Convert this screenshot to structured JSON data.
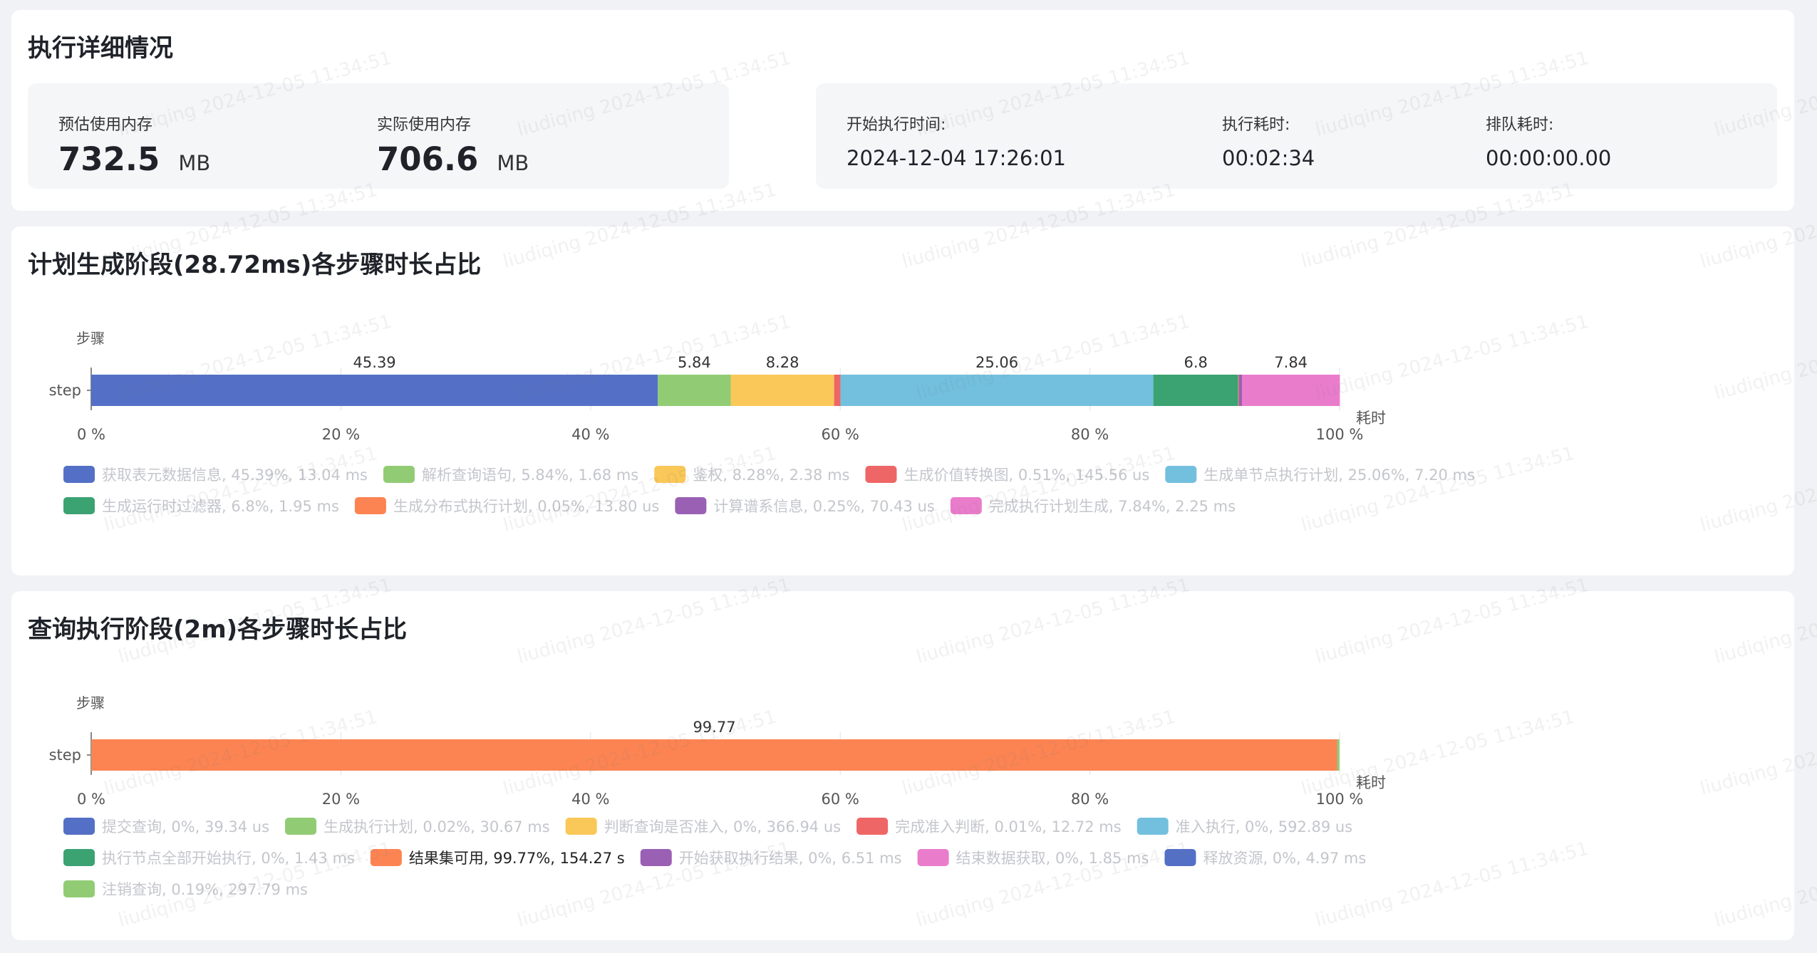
{
  "exec": {
    "title": "执行详细情况",
    "estimated_mem_label": "预估使用内存",
    "estimated_mem_value": "732.5",
    "estimated_mem_unit": "MB",
    "actual_mem_label": "实际使用内存",
    "actual_mem_value": "706.6",
    "actual_mem_unit": "MB",
    "start_label": "开始执行时间:",
    "start_value": "2024-12-04 17:26:01",
    "duration_label": "执行耗时:",
    "duration_value": "00:02:34",
    "queue_label": "排队耗时:",
    "queue_value": "00:00:00.00"
  },
  "plan": {
    "title": "计划生成阶段(28.72ms)各步骤时长占比"
  },
  "query": {
    "title": "查询执行阶段(2m)各步骤时长占比"
  },
  "watermark": {
    "text": "liudiqing 2024-12-05 11:34:51"
  },
  "chart_data": [
    {
      "type": "bar",
      "orientation": "horizontal-stacked",
      "ylabel": "步骤",
      "xlabel": "耗时",
      "categories": [
        "step"
      ],
      "xlim": [
        0,
        100
      ],
      "x_ticks": [
        "0 %",
        "20 %",
        "40 %",
        "60 %",
        "80 %",
        "100 %"
      ],
      "legend_position": "bottom",
      "series": [
        {
          "name": "获取表元数据信息, 45.39%, 13.04 ms",
          "value": 45.39,
          "color": "#5470c6",
          "label": "45.39"
        },
        {
          "name": "解析查询语句, 5.84%, 1.68 ms",
          "value": 5.84,
          "color": "#91cc75",
          "label": "5.84"
        },
        {
          "name": "鉴权, 8.28%, 2.38 ms",
          "value": 8.28,
          "color": "#fac858",
          "label": "8.28"
        },
        {
          "name": "生成价值转换图, 0.51%, 145.56 us",
          "value": 0.51,
          "color": "#ee6666",
          "label": ""
        },
        {
          "name": "生成单节点执行计划, 25.06%, 7.20 ms",
          "value": 25.06,
          "color": "#73c0de",
          "label": "25.06"
        },
        {
          "name": "生成运行时过滤器, 6.8%, 1.95 ms",
          "value": 6.8,
          "color": "#3ba272",
          "label": "6.8"
        },
        {
          "name": "生成分布式执行计划, 0.05%, 13.80 us",
          "value": 0.05,
          "color": "#fc8452",
          "label": ""
        },
        {
          "name": "计算谱系信息, 0.25%, 70.43 us",
          "value": 0.25,
          "color": "#9a60b4",
          "label": ""
        },
        {
          "name": "完成执行计划生成, 7.84%, 2.25 ms",
          "value": 7.84,
          "color": "#ea7ccc",
          "label": "7.84"
        }
      ]
    },
    {
      "type": "bar",
      "orientation": "horizontal-stacked",
      "ylabel": "步骤",
      "xlabel": "耗时",
      "categories": [
        "step"
      ],
      "xlim": [
        0,
        100
      ],
      "x_ticks": [
        "0 %",
        "20 %",
        "40 %",
        "60 %",
        "80 %",
        "100 %"
      ],
      "legend_position": "bottom",
      "series": [
        {
          "name": "提交查询, 0%, 39.34 us",
          "value": 0,
          "color": "#5470c6",
          "label": "",
          "dim": true
        },
        {
          "name": "生成执行计划, 0.02%, 30.67 ms",
          "value": 0.02,
          "color": "#91cc75",
          "label": "",
          "dim": true
        },
        {
          "name": "判断查询是否准入, 0%, 366.94 us",
          "value": 0,
          "color": "#fac858",
          "label": "",
          "dim": true
        },
        {
          "name": "完成准入判断, 0.01%, 12.72 ms",
          "value": 0.01,
          "color": "#ee6666",
          "label": "",
          "dim": true
        },
        {
          "name": "准入执行, 0%, 592.89 us",
          "value": 0,
          "color": "#73c0de",
          "label": "",
          "dim": true
        },
        {
          "name": "执行节点全部开始执行, 0%, 1.43 ms",
          "value": 0,
          "color": "#3ba272",
          "label": "",
          "dim": true
        },
        {
          "name": "结果集可用, 99.77%, 154.27 s",
          "value": 99.77,
          "color": "#fc8452",
          "label": "99.77",
          "dim": false
        },
        {
          "name": "开始获取执行结果, 0%, 6.51 ms",
          "value": 0,
          "color": "#9a60b4",
          "label": "",
          "dim": true
        },
        {
          "name": "结束数据获取, 0%, 1.85 ms",
          "value": 0,
          "color": "#ea7ccc",
          "label": "",
          "dim": true
        },
        {
          "name": "释放资源, 0%, 4.97 ms",
          "value": 0,
          "color": "#5470c6",
          "label": "",
          "dim": true
        },
        {
          "name": "注销查询, 0.19%, 297.79 ms",
          "value": 0.19,
          "color": "#91cc75",
          "label": "",
          "dim": true
        }
      ]
    }
  ]
}
